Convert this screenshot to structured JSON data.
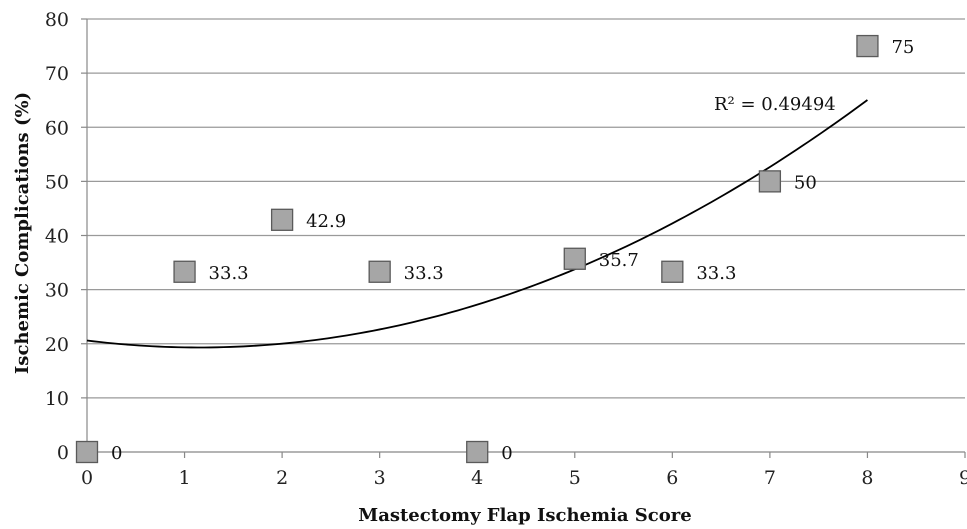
{
  "chart_data": {
    "type": "scatter",
    "title": "",
    "xlabel": "Mastectomy Flap Ischemia Score",
    "ylabel": "Ischemic Complications (%)",
    "xlim": [
      0,
      9
    ],
    "ylim": [
      0,
      80
    ],
    "x_ticks": [
      0,
      1,
      2,
      3,
      4,
      5,
      6,
      7,
      8,
      9
    ],
    "y_ticks": [
      0,
      10,
      20,
      30,
      40,
      50,
      60,
      70,
      80
    ],
    "grid": true,
    "legend": "none",
    "series": [
      {
        "points": [
          {
            "x": 0,
            "y": 0,
            "label": "0"
          },
          {
            "x": 1,
            "y": 33.3,
            "label": "33.3"
          },
          {
            "x": 2,
            "y": 42.9,
            "label": "42.9"
          },
          {
            "x": 3,
            "y": 33.3,
            "label": "33.3"
          },
          {
            "x": 4,
            "y": 0,
            "label": "0"
          },
          {
            "x": 5,
            "y": 35.7,
            "label": "35.7"
          },
          {
            "x": 6,
            "y": 33.3,
            "label": "33.3"
          },
          {
            "x": 7,
            "y": 50,
            "label": "50"
          },
          {
            "x": 8,
            "y": 75,
            "label": "75"
          }
        ],
        "marker_color": "#a6a6a6"
      }
    ],
    "trendline": {
      "type": "polynomial",
      "order": 2,
      "x_range": [
        0,
        8
      ],
      "r_squared_label": "R² = 0.49494",
      "color": "#000000"
    }
  }
}
